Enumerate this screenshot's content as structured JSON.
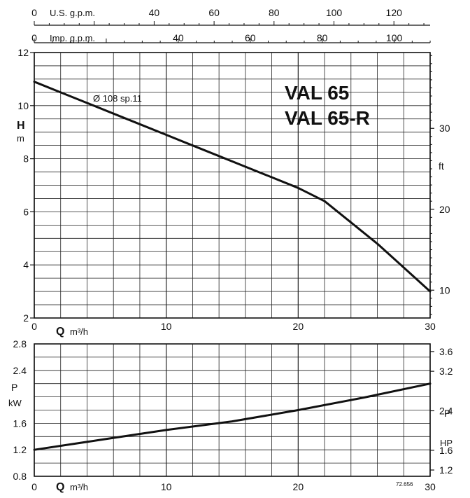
{
  "figure_code": "72.656",
  "top_axes": {
    "us_gpm": {
      "label": "U.S. g.p.m.",
      "first_tick": "0",
      "ticks": [
        40,
        60,
        80,
        100,
        120
      ],
      "m3h_per_unit": 0.227125,
      "max": 132
    },
    "imp_gpm": {
      "label": "Imp. g.p.m.",
      "first_tick": "0",
      "ticks": [
        40,
        60,
        80,
        100
      ],
      "m3h_per_unit": 0.272765,
      "max": 110
    }
  },
  "chart_data": [
    {
      "type": "line",
      "title": "VAL 65",
      "subtitle": "VAL 65-R",
      "xlabel": "Q",
      "xunit": "m³/h",
      "ylabel": "H",
      "yunit": "m",
      "y2label": "ft",
      "xlim": [
        0,
        30
      ],
      "ylim": [
        2,
        12
      ],
      "xticks": [
        0,
        10,
        20,
        30
      ],
      "yticks": [
        2,
        4,
        6,
        8,
        10,
        12
      ],
      "y2ticks": [
        10,
        20,
        30
      ],
      "grid": true,
      "series": [
        {
          "name": "Ø 108 sp.11",
          "x": [
            0,
            2,
            4,
            6,
            8,
            10,
            12,
            14,
            16,
            18,
            20,
            22,
            24,
            26,
            28,
            30
          ],
          "y": [
            10.9,
            10.5,
            10.1,
            9.7,
            9.3,
            8.9,
            8.5,
            8.1,
            7.7,
            7.3,
            6.9,
            6.4,
            5.6,
            4.8,
            3.9,
            3.0
          ]
        }
      ]
    },
    {
      "type": "line",
      "xlabel": "Q",
      "xunit": "m³/h",
      "ylabel": "P",
      "yunit": "kW",
      "y2label": "P",
      "y2unit": "HP",
      "xlim": [
        0,
        30
      ],
      "ylim": [
        0.8,
        2.8
      ],
      "xticks": [
        0,
        10,
        20,
        30
      ],
      "yticks": [
        0.8,
        1.2,
        1.6,
        2.4,
        2.8
      ],
      "y2ticks": [
        1.2,
        1.6,
        2.4,
        3.2,
        3.6
      ],
      "grid": true,
      "series": [
        {
          "x": [
            0,
            5,
            10,
            15,
            20,
            25,
            30
          ],
          "y": [
            1.2,
            1.35,
            1.5,
            1.63,
            1.8,
            1.99,
            2.2
          ]
        }
      ]
    }
  ]
}
